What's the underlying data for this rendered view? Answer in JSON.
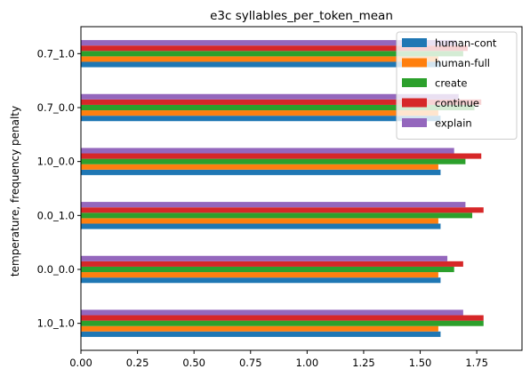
{
  "chart_data": {
    "type": "bar",
    "orientation": "horizontal",
    "title": "e3c syllables_per_token_mean",
    "xlabel": "",
    "ylabel": "temperature, frequency penalty",
    "categories": [
      "1.0_1.0",
      "0.0_0.0",
      "0.0_1.0",
      "1.0_0.0",
      "0.7_0.0",
      "0.7_1.0"
    ],
    "xlim": [
      0,
      1.95
    ],
    "xticks": [
      0.0,
      0.25,
      0.5,
      0.75,
      1.0,
      1.25,
      1.5,
      1.75
    ],
    "xtick_labels": [
      "0.00",
      "0.25",
      "0.50",
      "0.75",
      "1.00",
      "1.25",
      "1.50",
      "1.75"
    ],
    "grid": false,
    "legend_position": "top-right",
    "series": [
      {
        "name": "human-cont",
        "color": "#1f77b4",
        "values": [
          1.59,
          1.59,
          1.59,
          1.59,
          1.59,
          1.59
        ]
      },
      {
        "name": "human-full",
        "color": "#ff7f0e",
        "values": [
          1.58,
          1.58,
          1.58,
          1.58,
          1.58,
          1.58
        ]
      },
      {
        "name": "create",
        "color": "#2ca02c",
        "values": [
          1.78,
          1.65,
          1.73,
          1.7,
          1.74,
          1.69
        ]
      },
      {
        "name": "continue",
        "color": "#d62728",
        "values": [
          1.78,
          1.69,
          1.78,
          1.77,
          1.77,
          1.71
        ]
      },
      {
        "name": "explain",
        "color": "#9467bd",
        "values": [
          1.69,
          1.62,
          1.7,
          1.65,
          1.67,
          1.66
        ]
      }
    ]
  }
}
